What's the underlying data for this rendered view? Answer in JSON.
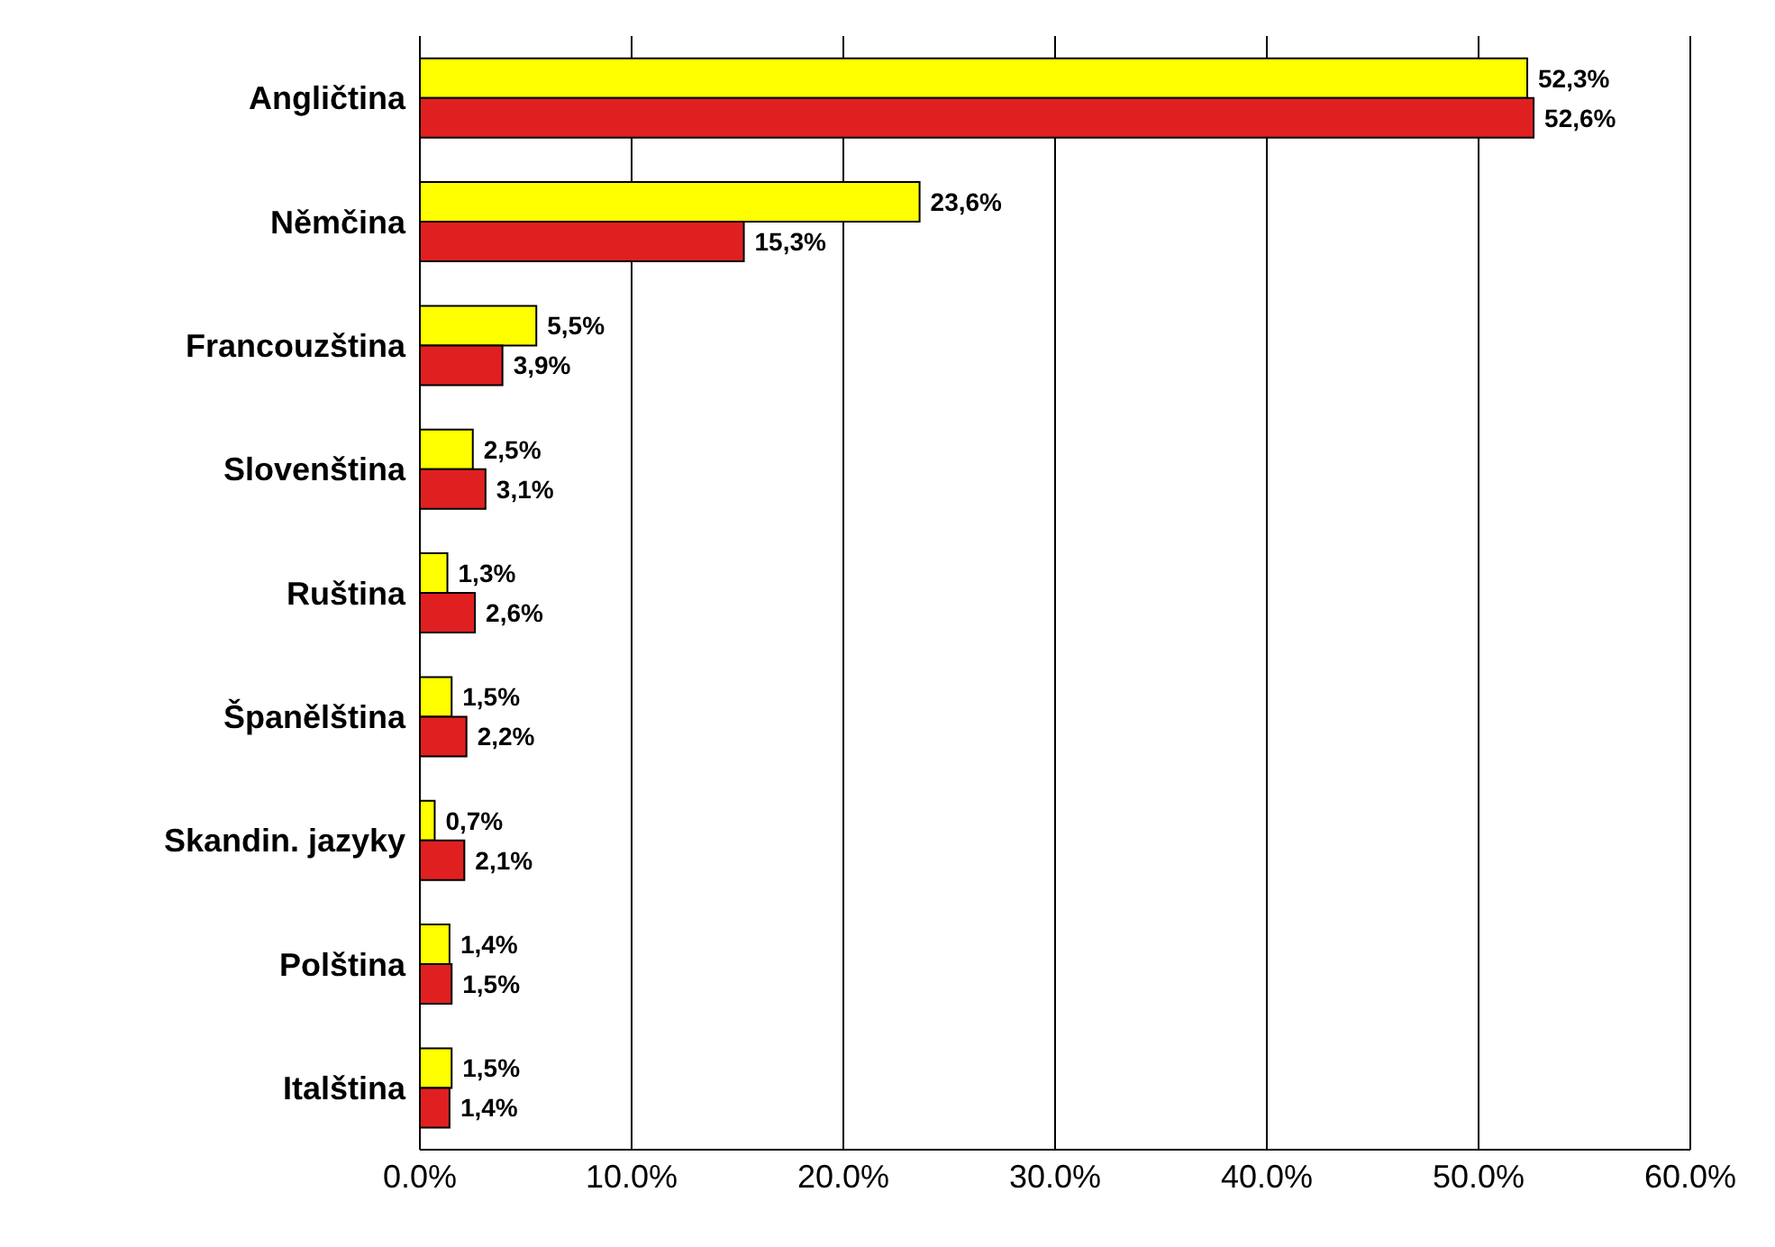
{
  "chart_data": {
    "type": "bar",
    "orientation": "horizontal",
    "categories": [
      "Angličtina",
      "Němčina",
      "Francouzština",
      "Slovenština",
      "Ruština",
      "Španělština",
      "Skandin. jazyky",
      "Polština",
      "Italština"
    ],
    "series": [
      {
        "color": "#ffff00",
        "values": [
          52.3,
          23.6,
          5.5,
          2.5,
          1.3,
          1.5,
          0.7,
          1.4,
          1.5
        ],
        "value_labels": [
          "52,3%",
          "23,6%",
          "5,5%",
          "2,5%",
          "1,3%",
          "1,5%",
          "0,7%",
          "1,4%",
          "1,5%"
        ]
      },
      {
        "color": "#e02020",
        "values": [
          52.6,
          15.3,
          3.9,
          3.1,
          2.6,
          2.2,
          2.1,
          1.5,
          1.4
        ],
        "value_labels": [
          "52,6%",
          "15,3%",
          "3,9%",
          "3,1%",
          "2,6%",
          "2,2%",
          "2,1%",
          "1,5%",
          "1,4%"
        ]
      }
    ],
    "xlim": [
      0,
      60
    ],
    "xticks": [
      {
        "value": 0,
        "label": "0.0%"
      },
      {
        "value": 10,
        "label": "10.0%"
      },
      {
        "value": 20,
        "label": "20.0%"
      },
      {
        "value": 30,
        "label": "30.0%"
      },
      {
        "value": 40,
        "label": "40.0%"
      },
      {
        "value": 50,
        "label": "50.0%"
      },
      {
        "value": 60,
        "label": "60.0%"
      }
    ],
    "grid": "x",
    "legend": false
  }
}
